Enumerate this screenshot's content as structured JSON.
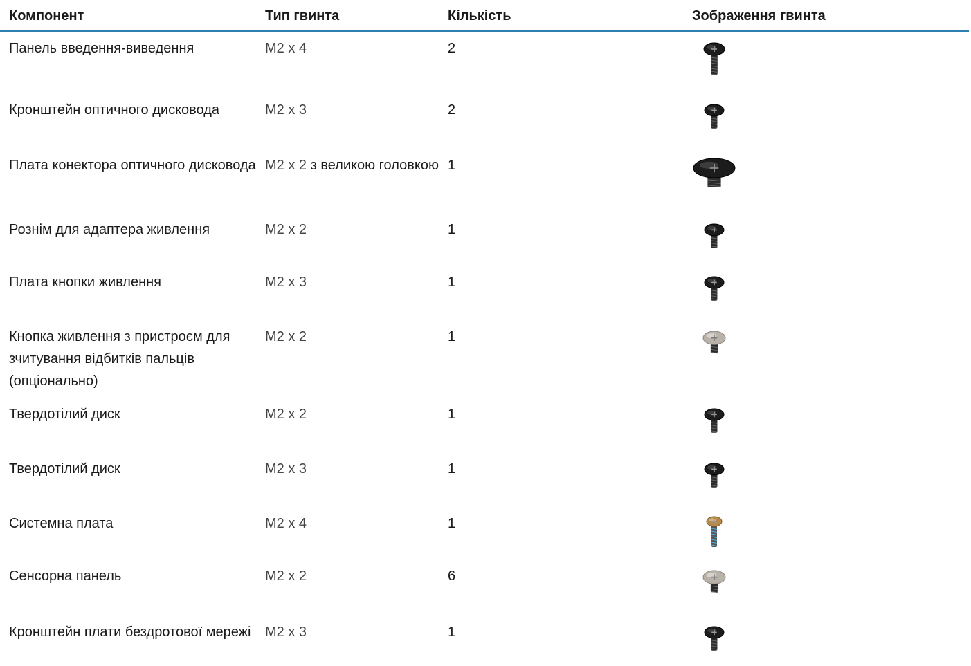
{
  "table": {
    "headers": {
      "component": "Компонент",
      "screw_type": "Тип гвинта",
      "quantity": "Кількість",
      "screw_image": "Зображення гвинта"
    },
    "rows": [
      {
        "component": "Панель введення-виведення",
        "screw_type": "M2 x 4",
        "screw_type_extra": "",
        "quantity": "2",
        "screw_icon": "black-screw-long-icon",
        "screw_color": "#1c1c1c"
      },
      {
        "component": "Кронштейн оптичного дисковода",
        "screw_type": "M2 x 3",
        "screw_type_extra": "",
        "quantity": "2",
        "screw_icon": "black-screw-short-icon",
        "screw_color": "#1c1c1c"
      },
      {
        "component": "Плата конектора оптичного дисковода",
        "screw_type": "M2 x 2",
        "screw_type_extra": "з великою головкою",
        "quantity": "1",
        "screw_icon": "black-screw-large-head-icon",
        "screw_color": "#1c1c1c"
      },
      {
        "component": "Рознім для адаптера живлення",
        "screw_type": "M2 x 2",
        "screw_type_extra": "",
        "quantity": "1",
        "screw_icon": "black-screw-short-icon",
        "screw_color": "#1c1c1c"
      },
      {
        "component": "Плата кнопки живлення",
        "screw_type": "M2 x 3",
        "screw_type_extra": "",
        "quantity": "1",
        "screw_icon": "black-screw-short-icon",
        "screw_color": "#1c1c1c"
      },
      {
        "component": "Кнопка живлення з пристроєм для зчитування відбитків пальців (опціонально)",
        "screw_type": "M2 x 2",
        "screw_type_extra": "",
        "quantity": "1",
        "screw_icon": "silver-screw-flat-icon",
        "screw_color": "#b8b2aa"
      },
      {
        "component": "Твердотілий диск",
        "screw_type": "M2 x 2",
        "screw_type_extra": "",
        "quantity": "1",
        "screw_icon": "black-screw-short-icon",
        "screw_color": "#1c1c1c"
      },
      {
        "component": "Твердотілий диск",
        "screw_type": "M2 x 3",
        "screw_type_extra": "",
        "quantity": "1",
        "screw_icon": "black-screw-short-icon",
        "screw_color": "#1c1c1c"
      },
      {
        "component": "Системна плата",
        "screw_type": "M2 x 4",
        "screw_type_extra": "",
        "quantity": "1",
        "screw_icon": "gold-screw-long-icon",
        "screw_color": "#b88a4a"
      },
      {
        "component": "Сенсорна панель",
        "screw_type": "M2 x 2",
        "screw_type_extra": "",
        "quantity": "6",
        "screw_icon": "silver-screw-flat-icon",
        "screw_color": "#b8b2aa"
      },
      {
        "component": "Кронштейн плати бездротової мережі",
        "screw_type": "M2 x 3",
        "screw_type_extra": "",
        "quantity": "1",
        "screw_icon": "black-screw-short-icon",
        "screw_color": "#1c1c1c"
      }
    ]
  },
  "colors": {
    "header_rule": "#2d7fb0",
    "text": "#1a1a1a"
  }
}
